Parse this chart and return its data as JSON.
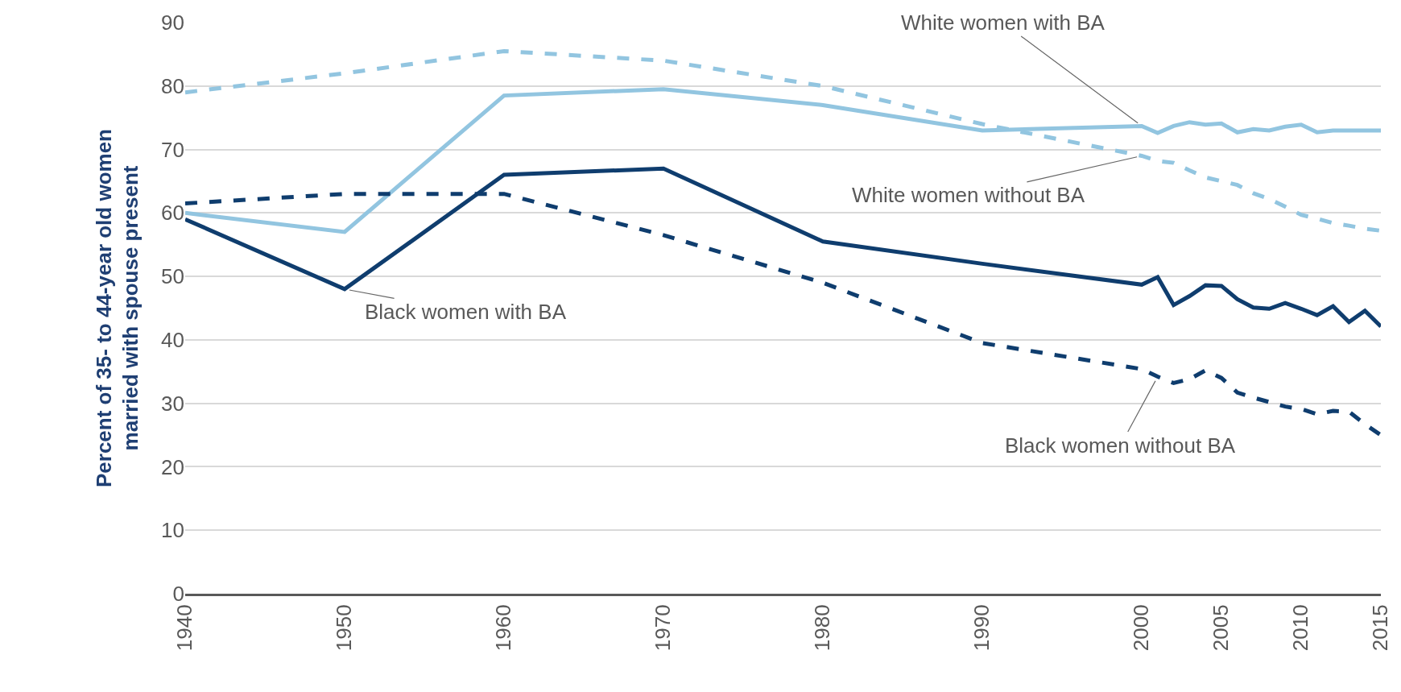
{
  "chart_data": {
    "type": "line",
    "ylabel": "Percent of 35- to 44-year old women\nmarried with spouse present",
    "x": [
      1940,
      1950,
      1960,
      1970,
      1980,
      1990,
      2000,
      2001,
      2002,
      2003,
      2004,
      2005,
      2006,
      2007,
      2008,
      2009,
      2010,
      2011,
      2012,
      2013,
      2014,
      2015
    ],
    "series": [
      {
        "name": "White women with BA",
        "color": "#92c5e0",
        "line_style": "solid",
        "values": [
          60,
          57,
          78.5,
          79.5,
          77,
          73,
          73.7,
          72.6,
          73.7,
          74.3,
          73.9,
          74.1,
          72.7,
          73.2,
          73,
          73.6,
          73.9,
          72.7,
          73,
          73,
          73,
          73
        ]
      },
      {
        "name": "White women without BA",
        "color": "#92c5e0",
        "line_style": "dashed",
        "values": [
          79,
          82,
          85.5,
          84,
          80,
          74,
          69,
          68.2,
          67.9,
          66.7,
          65.6,
          65,
          64.4,
          63.1,
          62.2,
          61,
          59.7,
          59.1,
          58.4,
          58,
          57.5,
          57.2
        ]
      },
      {
        "name": "Black women with BA",
        "color": "#0f3d6e",
        "line_style": "solid",
        "values": [
          59,
          48,
          66,
          67,
          55.5,
          52,
          48.7,
          49.9,
          45.5,
          46.9,
          48.6,
          48.5,
          46.4,
          45.1,
          44.9,
          45.8,
          44.9,
          43.9,
          45.3,
          42.8,
          44.6,
          42.1
        ]
      },
      {
        "name": "Black women without BA",
        "color": "#0f3d6e",
        "line_style": "dashed",
        "values": [
          61.5,
          63,
          63,
          56.5,
          49,
          39.5,
          35.4,
          34.2,
          33.2,
          33.8,
          35.2,
          34.0,
          31.7,
          30.9,
          30.2,
          29.5,
          29.1,
          28.3,
          28.8,
          28.7,
          26.7,
          25
        ]
      }
    ],
    "marker": "none",
    "xlim": [
      1940,
      2015
    ],
    "xticks": [
      1940,
      1950,
      1960,
      1970,
      1980,
      1990,
      2000,
      2005,
      2010,
      2015
    ],
    "ylim": [
      0,
      90
    ],
    "yticks": [
      0,
      10,
      20,
      30,
      40,
      50,
      60,
      70,
      80,
      90
    ],
    "grid": "y"
  }
}
